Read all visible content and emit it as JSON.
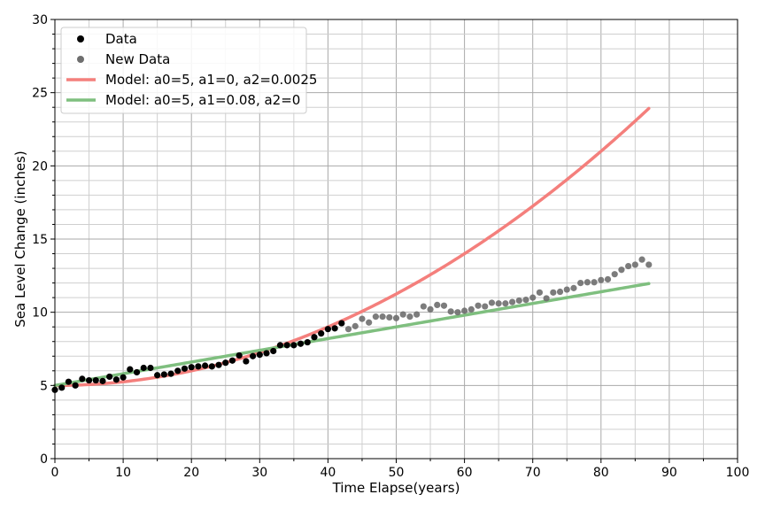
{
  "chart_data": {
    "type": "scatter",
    "xlabel": "Time Elapse(years)",
    "ylabel": "Sea Level Change (inches)",
    "xlim": [
      0,
      100
    ],
    "ylim": [
      0,
      30
    ],
    "x_ticks": [
      "0",
      "10",
      "20",
      "30",
      "40",
      "50",
      "60",
      "70",
      "80",
      "90",
      "100"
    ],
    "y_ticks": [
      "0",
      "5",
      "10",
      "15",
      "20",
      "25",
      "30"
    ],
    "grid": true,
    "grid_minor": true,
    "legend_position": "upper-left",
    "series": [
      {
        "name": "Data",
        "kind": "scatter",
        "color": "#000000",
        "x": [
          0,
          1,
          2,
          3,
          4,
          5,
          6,
          7,
          8,
          9,
          10,
          11,
          12,
          13,
          14,
          15,
          16,
          17,
          18,
          19,
          20,
          21,
          22,
          23,
          24,
          25,
          26,
          27,
          28,
          29,
          30,
          31,
          32,
          33,
          34,
          35,
          36,
          37,
          38,
          39,
          40,
          41,
          42
        ],
        "y": [
          4.7,
          4.85,
          5.25,
          5.0,
          5.45,
          5.35,
          5.35,
          5.3,
          5.6,
          5.4,
          5.55,
          6.1,
          5.9,
          6.2,
          6.2,
          5.7,
          5.75,
          5.8,
          6.0,
          6.15,
          6.25,
          6.3,
          6.35,
          6.3,
          6.4,
          6.55,
          6.7,
          7.05,
          6.65,
          7.0,
          7.1,
          7.2,
          7.35,
          7.75,
          7.75,
          7.75,
          7.85,
          7.95,
          8.3,
          8.55,
          8.85,
          8.9,
          9.25
        ]
      },
      {
        "name": "New Data",
        "kind": "scatter",
        "color": "#6e6e6e",
        "x": [
          43,
          44,
          45,
          46,
          47,
          48,
          49,
          50,
          51,
          52,
          53,
          54,
          55,
          56,
          57,
          58,
          59,
          60,
          61,
          62,
          63,
          64,
          65,
          66,
          67,
          68,
          69,
          70,
          71,
          72,
          73,
          74,
          75,
          76,
          77,
          78,
          79,
          80,
          81,
          82,
          83,
          84,
          85,
          86,
          87
        ],
        "y": [
          8.85,
          9.05,
          9.55,
          9.3,
          9.7,
          9.7,
          9.65,
          9.6,
          9.85,
          9.7,
          9.85,
          10.4,
          10.2,
          10.5,
          10.45,
          10.05,
          10.0,
          10.1,
          10.2,
          10.45,
          10.4,
          10.65,
          10.6,
          10.6,
          10.7,
          10.8,
          10.85,
          11.0,
          11.35,
          10.95,
          11.35,
          11.4,
          11.55,
          11.65,
          12.0,
          12.05,
          12.05,
          12.2,
          12.25,
          12.6,
          12.9,
          13.15,
          13.25,
          13.6,
          13.25
        ]
      },
      {
        "name": "Model: a0=5, a1=0, a2=0.0025",
        "kind": "line",
        "color": "#f47f7c",
        "a0": 5,
        "a1": 0,
        "a2": 0.0025,
        "x_range": [
          0,
          87
        ]
      },
      {
        "name": "Model: a0=5, a1=0.08, a2=0",
        "kind": "line",
        "color": "#7fbf7f",
        "a0": 5,
        "a1": 0.08,
        "a2": 0,
        "x_range": [
          0,
          87
        ]
      }
    ]
  }
}
